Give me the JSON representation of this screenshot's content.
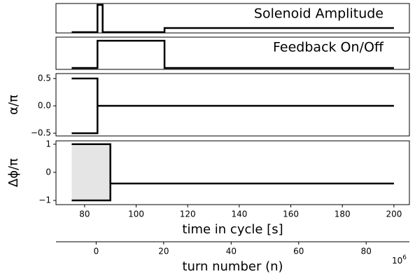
{
  "chart_data": [
    {
      "type": "line",
      "annotation": "Solenoid Amplitude",
      "xlim": [
        68.9,
        206
      ],
      "ylim": [
        -0.03,
        1.05
      ],
      "series": [
        {
          "color": "#000000",
          "x": [
            75,
            85,
            85,
            87,
            87,
            111,
            111,
            200
          ],
          "values": [
            0,
            0,
            1,
            1,
            0,
            0,
            0.15,
            0.15
          ]
        }
      ]
    },
    {
      "type": "line",
      "annotation": "Feedback On/Off",
      "xlim": [
        68.9,
        206
      ],
      "ylim": [
        -0.05,
        1.13
      ],
      "series": [
        {
          "color": "#000000",
          "x": [
            75,
            85,
            85,
            111,
            111,
            200
          ],
          "values": [
            0,
            0,
            1,
            1,
            0,
            0
          ]
        }
      ]
    },
    {
      "type": "line",
      "ylabel": "α/π",
      "xlim": [
        68.9,
        206
      ],
      "ylim": [
        -0.55,
        0.59
      ],
      "yticks": [
        {
          "value": 0.5,
          "label": "0.5"
        },
        {
          "value": 0.0,
          "label": "0.0"
        },
        {
          "value": -0.5,
          "label": "−0.5"
        }
      ],
      "series": [
        {
          "color": "#000000",
          "x": [
            75,
            85,
            85,
            200
          ],
          "values": [
            0.5,
            0.5,
            0,
            0
          ]
        },
        {
          "color": "#000000",
          "x": [
            75,
            85,
            85
          ],
          "values": [
            -0.5,
            -0.5,
            0
          ]
        }
      ]
    },
    {
      "type": "line",
      "ylabel": "Δϕ/π",
      "xlabel": "time in cycle [s]",
      "xlim": [
        68.9,
        206
      ],
      "ylim": [
        -1.15,
        1.12
      ],
      "xticks": [
        80,
        100,
        120,
        140,
        160,
        180,
        200
      ],
      "yticks": [
        1,
        0,
        {
          "value": -1,
          "label": "−1"
        }
      ],
      "fill_between": {
        "color": "#e5e5e5",
        "x": [
          75,
          90
        ],
        "upper": [
          1,
          1
        ],
        "lower": [
          -1,
          -1
        ]
      },
      "series": [
        {
          "color": "#000000",
          "x": [
            75,
            90,
            90,
            200
          ],
          "values": [
            1,
            1,
            -0.4,
            -0.4
          ]
        },
        {
          "color": "#000000",
          "x": [
            75,
            90,
            90
          ],
          "values": [
            -1,
            -1,
            1
          ]
        }
      ]
    },
    {
      "type": "axis",
      "xlabel": "turn number (n)",
      "xlim": [
        -11.9,
        92.8
      ],
      "xticks": [
        0,
        20,
        40,
        60,
        80
      ],
      "offset_label": {
        "base": "10",
        "exponent": "6"
      }
    }
  ]
}
